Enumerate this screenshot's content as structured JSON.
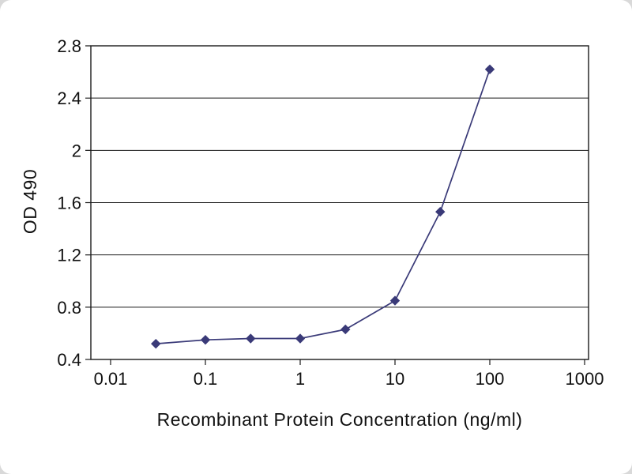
{
  "page": {
    "background_color": "#ffffff",
    "surround_color": "#d9d9d9"
  },
  "chart_data": {
    "type": "line",
    "title": "",
    "xlabel": "Recombinant Protein Concentration (ng/ml)",
    "ylabel": "OD 490",
    "x_scale": "log",
    "xlim": [
      0.01,
      1000
    ],
    "ylim": [
      0.4,
      2.8
    ],
    "x_ticks": [
      0.01,
      0.1,
      1,
      10,
      100,
      1000
    ],
    "x_tick_labels": [
      "0.01",
      "0.1",
      "1",
      "10",
      "100",
      "1000"
    ],
    "y_ticks": [
      0.4,
      0.8,
      1.2,
      1.6,
      2,
      2.4,
      2.8
    ],
    "y_tick_labels": [
      "0.4",
      "0.8",
      "1.2",
      "1.6",
      "2",
      "2.4",
      "2.8"
    ],
    "grid": "horizontal",
    "legend": "none",
    "axis_color": "#1a1a1a",
    "series": [
      {
        "name": "OD 490",
        "color": "#3a3a78",
        "marker": "diamond",
        "x": [
          0.03,
          0.1,
          0.3,
          1,
          3,
          10,
          30,
          100
        ],
        "y": [
          0.52,
          0.55,
          0.56,
          0.56,
          0.63,
          0.85,
          1.53,
          2.62
        ]
      }
    ]
  }
}
